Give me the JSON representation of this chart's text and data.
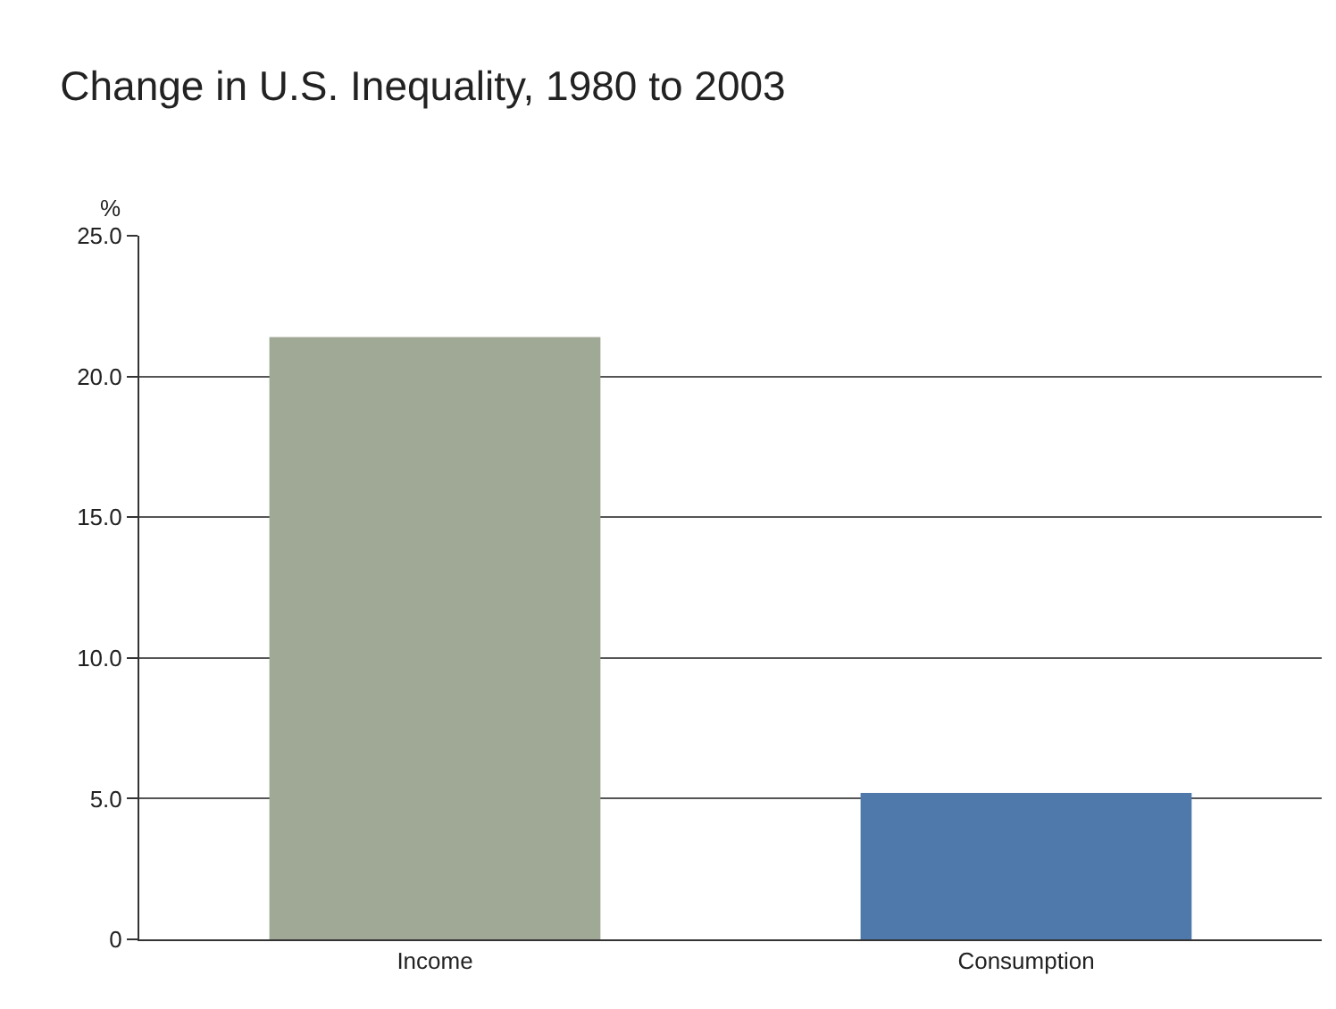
{
  "chart_data": {
    "type": "bar",
    "title": "Change in U.S. Inequality, 1980 to 2003",
    "ylabel": "%",
    "categories": [
      "Income",
      "Consumption"
    ],
    "values": [
      21.4,
      5.2
    ],
    "colors": [
      "#a0a896",
      "#4f79aa"
    ],
    "ylim": [
      0,
      25
    ],
    "yticks": [
      {
        "value": 0,
        "label": "0"
      },
      {
        "value": 5,
        "label": "5.0"
      },
      {
        "value": 10,
        "label": "10.0"
      },
      {
        "value": 15,
        "label": "15.0"
      },
      {
        "value": 20,
        "label": "20.0"
      },
      {
        "value": 25,
        "label": "25.0"
      }
    ],
    "grid": "y"
  }
}
